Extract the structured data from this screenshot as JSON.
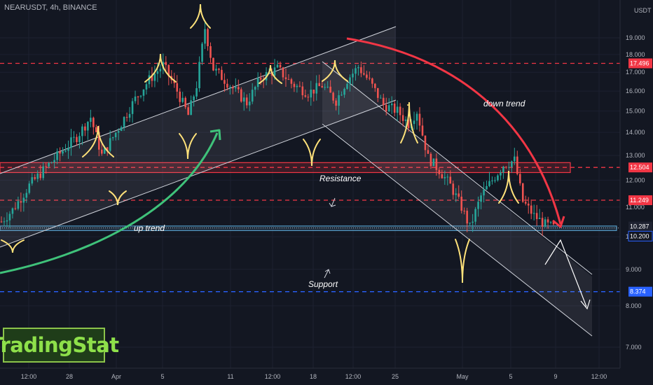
{
  "header": {
    "symbol_line": "NEARUSDT, 4h, BINANCE",
    "currency": "USDT"
  },
  "logo": {
    "text": "TradingStat"
  },
  "chart_data": {
    "type": "candlestick",
    "symbol": "NEARUSDT",
    "interval": "4h",
    "exchange": "BINANCE",
    "currency": "USDT",
    "y_axis": {
      "scale": "log",
      "ticks": [
        "19.000",
        "18.000",
        "17.000",
        "16.000",
        "15.000",
        "14.000",
        "13.000",
        "12.000",
        "11.000",
        "10.000",
        "9.000",
        "8.000",
        "7.000"
      ],
      "range": [
        6.6,
        20.5
      ]
    },
    "x_axis": {
      "ticks": [
        "12:00",
        "28",
        "Apr",
        "5",
        "11",
        "12:00",
        "18",
        "12:00",
        "25",
        "May",
        "5",
        "9",
        "12:00"
      ]
    },
    "price_labels": [
      {
        "value": "17.496",
        "color": "#f23645"
      },
      {
        "value": "12.504",
        "color": "#f23645"
      },
      {
        "value": "11.249",
        "color": "#f23645"
      },
      {
        "value": "10.287",
        "color": "#1e2230"
      },
      {
        "value": "10.200",
        "color": "#131722"
      },
      {
        "value": "8.374",
        "color": "#2962ff"
      }
    ],
    "horizontal_levels": [
      {
        "price": 17.496,
        "style": "dashed",
        "color": "#f23645"
      },
      {
        "price": 12.504,
        "style": "dashed",
        "color": "#f23645"
      },
      {
        "price": 11.249,
        "style": "dashed",
        "color": "#f23645"
      },
      {
        "price": 8.374,
        "style": "dashed",
        "color": "#2962ff"
      },
      {
        "price": 10.287,
        "style": "dotted",
        "color": "#9598a1"
      }
    ],
    "zones": [
      {
        "name": "resistance",
        "from": 12.3,
        "to": 12.7,
        "color": "#f23645"
      },
      {
        "name": "support",
        "from": 10.2,
        "to": 10.35,
        "color": "#5fb0e0"
      }
    ],
    "annotations": [
      "up trend",
      "down trend",
      "Resistance",
      "Support"
    ],
    "price_path": [
      {
        "t": 0,
        "p": 10.5
      },
      {
        "t": 4,
        "p": 10.9
      },
      {
        "t": 10,
        "p": 11.8
      },
      {
        "t": 16,
        "p": 12.5
      },
      {
        "t": 22,
        "p": 13.2
      },
      {
        "t": 27,
        "p": 13.8
      },
      {
        "t": 32,
        "p": 14.7
      },
      {
        "t": 36,
        "p": 13.0
      },
      {
        "t": 42,
        "p": 14.2
      },
      {
        "t": 48,
        "p": 15.6
      },
      {
        "t": 53,
        "p": 16.6
      },
      {
        "t": 58,
        "p": 17.4
      },
      {
        "t": 63,
        "p": 16.0
      },
      {
        "t": 67,
        "p": 14.8
      },
      {
        "t": 70,
        "p": 16.3
      },
      {
        "t": 73,
        "p": 19.6
      },
      {
        "t": 76,
        "p": 17.2
      },
      {
        "t": 82,
        "p": 16.3
      },
      {
        "t": 88,
        "p": 15.4
      },
      {
        "t": 93,
        "p": 16.7
      },
      {
        "t": 99,
        "p": 17.2
      },
      {
        "t": 104,
        "p": 16.4
      },
      {
        "t": 110,
        "p": 15.9
      },
      {
        "t": 115,
        "p": 16.3
      },
      {
        "t": 120,
        "p": 15.5
      },
      {
        "t": 124,
        "p": 16.6
      },
      {
        "t": 128,
        "p": 17.3
      },
      {
        "t": 132,
        "p": 16.5
      },
      {
        "t": 137,
        "p": 15.3
      },
      {
        "t": 142,
        "p": 15.0
      },
      {
        "t": 146,
        "p": 14.4
      },
      {
        "t": 149,
        "p": 15.0
      },
      {
        "t": 153,
        "p": 12.9
      },
      {
        "t": 157,
        "p": 12.4
      },
      {
        "t": 161,
        "p": 11.8
      },
      {
        "t": 165,
        "p": 11.0
      },
      {
        "t": 168,
        "p": 10.3
      },
      {
        "t": 172,
        "p": 11.4
      },
      {
        "t": 176,
        "p": 12.0
      },
      {
        "t": 180,
        "p": 12.6
      },
      {
        "t": 184,
        "p": 12.8
      },
      {
        "t": 187,
        "p": 11.2
      },
      {
        "t": 191,
        "p": 10.7
      },
      {
        "t": 195,
        "p": 10.4
      },
      {
        "t": 198,
        "p": 10.3
      }
    ]
  }
}
